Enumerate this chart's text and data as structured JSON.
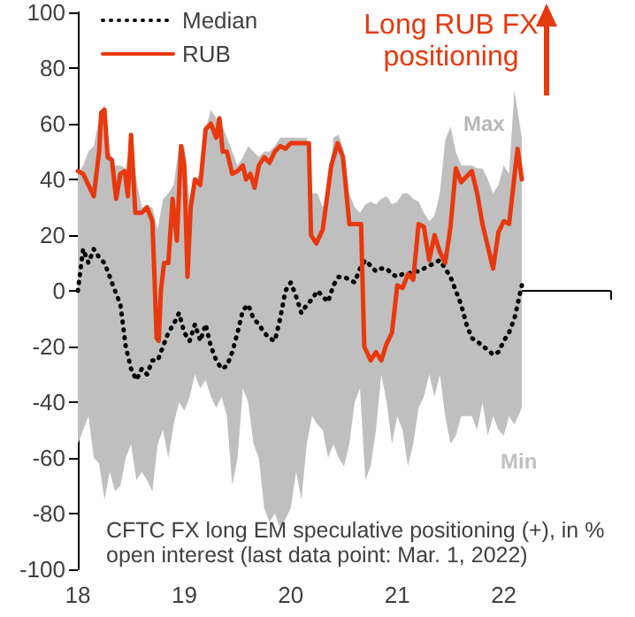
{
  "chart_data": {
    "type": "line",
    "xlim": [
      18,
      23
    ],
    "xticks": [
      18,
      19,
      20,
      21,
      22,
      {
        "value": 23,
        "label": null
      }
    ],
    "ylim": [
      -100,
      100
    ],
    "yticks": [
      -100,
      -80,
      -60,
      -40,
      -20,
      0,
      20,
      40,
      60,
      80,
      100
    ],
    "legend": "top left",
    "annotations": [
      "CFTC FX long EM speculative positioning (+), in % open interest (last data point: Mar. 1, 2022)",
      "Long RUB FX positioning",
      "Max",
      "Min"
    ],
    "series": [
      {
        "name": "Median",
        "color": "#000000",
        "line_style": "dotted",
        "x": [
          18.0,
          18.05,
          18.1,
          18.15,
          18.2,
          18.25,
          18.3,
          18.35,
          18.4,
          18.45,
          18.5,
          18.55,
          18.6,
          18.65,
          18.7,
          18.75,
          18.8,
          18.85,
          18.9,
          18.95,
          19.0,
          19.05,
          19.1,
          19.15,
          19.2,
          19.25,
          19.3,
          19.35,
          19.4,
          19.45,
          19.5,
          19.55,
          19.6,
          19.65,
          19.7,
          19.75,
          19.8,
          19.85,
          19.9,
          19.95,
          20.0,
          20.05,
          20.1,
          20.15,
          20.2,
          20.25,
          20.3,
          20.35,
          20.4,
          20.45,
          20.5,
          20.55,
          20.6,
          20.65,
          20.7,
          20.75,
          20.8,
          20.85,
          20.9,
          20.95,
          21.0,
          21.05,
          21.1,
          21.15,
          21.2,
          21.25,
          21.3,
          21.35,
          21.4,
          21.45,
          21.5,
          21.55,
          21.6,
          21.65,
          21.7,
          21.75,
          21.8,
          21.85,
          21.9,
          21.95,
          22.0,
          22.05,
          22.1,
          22.17
        ],
        "values": [
          0,
          15,
          10,
          15,
          12,
          10,
          5,
          0,
          -5,
          -20,
          -28,
          -32,
          -28,
          -30,
          -25,
          -25,
          -20,
          -15,
          -12,
          -8,
          -15,
          -18,
          -12,
          -18,
          -12,
          -20,
          -25,
          -28,
          -27,
          -22,
          -15,
          -7,
          -5,
          -10,
          -12,
          -15,
          -17,
          -18,
          -10,
          0,
          3,
          -2,
          -8,
          -5,
          -3,
          0,
          -2,
          -4,
          2,
          5,
          5,
          4,
          3,
          8,
          11,
          9,
          7,
          8,
          8,
          6,
          5,
          6,
          6,
          7,
          7,
          8,
          9,
          10,
          11,
          8,
          5,
          0,
          -5,
          -12,
          -17,
          -18,
          -20,
          -21,
          -23,
          -22,
          -18,
          -15,
          -10,
          2
        ],
        "lower": [
          -55,
          -50,
          -45,
          -60,
          -62,
          -75,
          -65,
          -72,
          -70,
          -60,
          -55,
          -68,
          -65,
          -68,
          -72,
          -55,
          -50,
          -60,
          -48,
          -40,
          -43,
          -38,
          -30,
          -35,
          -32,
          -38,
          -42,
          -38,
          -45,
          -70,
          -60,
          -35,
          -40,
          -55,
          -60,
          -78,
          -83,
          -80,
          -85,
          -82,
          -78,
          -65,
          -75,
          -55,
          -45,
          -48,
          -50,
          -60,
          -55,
          -60,
          -63,
          -55,
          -40,
          -35,
          -68,
          -63,
          -50,
          -30,
          -40,
          -55,
          -45,
          -50,
          -63,
          -55,
          -42,
          -38,
          -30,
          -38,
          -30,
          -45,
          -55,
          -52,
          -45,
          -45,
          -45,
          -50,
          -40,
          -52,
          -45,
          -50,
          -52,
          -45,
          -48,
          -42
        ],
        "upper": [
          42,
          45,
          50,
          52,
          62,
          67,
          50,
          45,
          45,
          44,
          56,
          40,
          30,
          30,
          30,
          22,
          33,
          35,
          38,
          52,
          52,
          32,
          40,
          42,
          58,
          65,
          62,
          60,
          55,
          50,
          45,
          48,
          52,
          50,
          48,
          50,
          50,
          52,
          55,
          55,
          55,
          55,
          55,
          55,
          35,
          35,
          30,
          35,
          55,
          56,
          50,
          35,
          30,
          28,
          31,
          32,
          31,
          33,
          34,
          31,
          32,
          35,
          35,
          33,
          32,
          28,
          25,
          27,
          35,
          54,
          59,
          50,
          45,
          45,
          45,
          44,
          44,
          40,
          35,
          38,
          45,
          42,
          72,
          55
        ]
      },
      {
        "name": "RUB",
        "color": "#e8380d",
        "line_style": "solid",
        "x": [
          18.0,
          18.05,
          18.1,
          18.15,
          18.2,
          18.22,
          18.25,
          18.28,
          18.32,
          18.36,
          18.4,
          18.44,
          18.47,
          18.5,
          18.54,
          18.6,
          18.65,
          18.7,
          18.72,
          18.74,
          18.76,
          18.78,
          18.81,
          18.85,
          18.89,
          18.93,
          18.97,
          19.0,
          19.03,
          19.06,
          19.1,
          19.15,
          19.2,
          19.25,
          19.3,
          19.33,
          19.36,
          19.4,
          19.45,
          19.5,
          19.55,
          19.58,
          19.62,
          19.66,
          19.7,
          19.75,
          19.8,
          19.85,
          19.9,
          19.95,
          20.0,
          20.05,
          20.1,
          20.17,
          20.19,
          20.24,
          20.3,
          20.38,
          20.44,
          20.49,
          20.55,
          20.66,
          20.69,
          20.75,
          20.8,
          20.85,
          20.9,
          20.95,
          20.98,
          21.0,
          21.05,
          21.1,
          21.15,
          21.2,
          21.25,
          21.3,
          21.35,
          21.4,
          21.45,
          21.5,
          21.55,
          21.6,
          21.65,
          21.7,
          21.75,
          21.8,
          21.85,
          21.9,
          21.95,
          22.0,
          22.05,
          22.1,
          22.13,
          22.17
        ],
        "values": [
          43,
          42,
          38,
          34,
          50,
          64,
          65,
          48,
          47,
          33,
          42,
          43,
          34,
          56,
          28,
          28,
          30,
          25,
          5,
          -17,
          -18,
          0,
          10,
          10,
          33,
          18,
          52,
          45,
          5,
          30,
          40,
          38,
          58,
          60,
          55,
          62,
          50,
          50,
          42,
          43,
          45,
          40,
          42,
          37,
          45,
          48,
          46,
          50,
          52,
          51,
          53,
          53,
          53,
          53,
          20,
          17,
          22,
          45,
          53,
          48,
          24,
          24,
          -20,
          -25,
          -22,
          -25,
          -19,
          -15,
          -5,
          2,
          1,
          6,
          4,
          24,
          23,
          11,
          20,
          14,
          10,
          23,
          44,
          39,
          41,
          43,
          35,
          24,
          16,
          8,
          21,
          25,
          24,
          41,
          51,
          40
        ]
      }
    ]
  }
}
